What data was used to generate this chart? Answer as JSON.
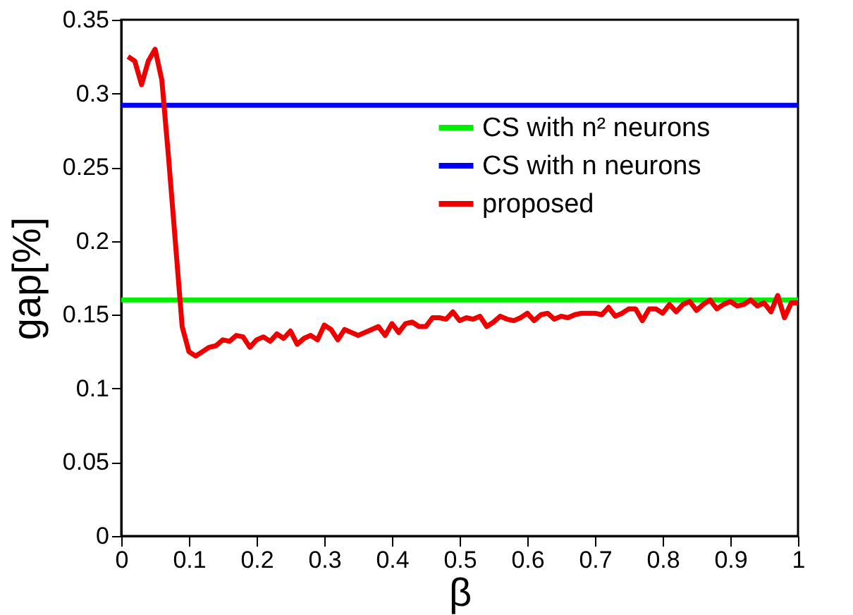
{
  "chart_data": {
    "type": "line",
    "xlabel": "β",
    "ylabel": "gap[%]",
    "xlim": [
      0,
      1
    ],
    "xticks": [
      0,
      0.1,
      0.2,
      0.3,
      0.4,
      0.5,
      0.6,
      0.7,
      0.8,
      0.9,
      1
    ],
    "ylim": [
      0,
      0.35
    ],
    "yticks": [
      0,
      0.05,
      0.1,
      0.15,
      0.2,
      0.25,
      0.3,
      0.35
    ],
    "grid": false,
    "legend": "top right",
    "marker": "none",
    "line_style": "solid",
    "series": [
      {
        "name": "CS with n² neurons",
        "color": "#00ee00",
        "x": [
          0,
          1
        ],
        "values": [
          0.16,
          0.16
        ]
      },
      {
        "name": "CS with n neurons",
        "color": "#0000ee",
        "x": [
          0,
          1
        ],
        "values": [
          0.292,
          0.292
        ]
      },
      {
        "name": "proposed",
        "color": "#ee0000",
        "x": [
          0.01,
          0.02,
          0.03,
          0.04,
          0.05,
          0.06,
          0.07,
          0.08,
          0.09,
          0.1,
          0.11,
          0.12,
          0.13,
          0.14,
          0.15,
          0.16,
          0.17,
          0.18,
          0.19,
          0.2,
          0.21,
          0.22,
          0.23,
          0.24,
          0.25,
          0.26,
          0.27,
          0.28,
          0.29,
          0.3,
          0.31,
          0.32,
          0.33,
          0.34,
          0.35,
          0.36,
          0.37,
          0.38,
          0.39,
          0.4,
          0.41,
          0.42,
          0.43,
          0.44,
          0.45,
          0.46,
          0.47,
          0.48,
          0.49,
          0.5,
          0.51,
          0.52,
          0.53,
          0.54,
          0.55,
          0.56,
          0.57,
          0.58,
          0.59,
          0.6,
          0.61,
          0.62,
          0.63,
          0.64,
          0.65,
          0.66,
          0.67,
          0.68,
          0.69,
          0.7,
          0.71,
          0.72,
          0.73,
          0.74,
          0.75,
          0.76,
          0.77,
          0.78,
          0.79,
          0.8,
          0.81,
          0.82,
          0.83,
          0.84,
          0.85,
          0.86,
          0.87,
          0.88,
          0.89,
          0.9,
          0.91,
          0.92,
          0.93,
          0.94,
          0.95,
          0.96,
          0.97,
          0.98,
          0.99,
          1.0
        ],
        "values": [
          0.325,
          0.322,
          0.306,
          0.322,
          0.33,
          0.309,
          0.256,
          0.199,
          0.142,
          0.125,
          0.122,
          0.125,
          0.128,
          0.129,
          0.133,
          0.132,
          0.136,
          0.135,
          0.128,
          0.133,
          0.135,
          0.132,
          0.137,
          0.134,
          0.139,
          0.13,
          0.134,
          0.136,
          0.133,
          0.143,
          0.14,
          0.133,
          0.14,
          0.138,
          0.136,
          0.138,
          0.14,
          0.142,
          0.136,
          0.144,
          0.138,
          0.144,
          0.145,
          0.142,
          0.142,
          0.148,
          0.148,
          0.147,
          0.152,
          0.146,
          0.148,
          0.147,
          0.149,
          0.142,
          0.145,
          0.149,
          0.147,
          0.146,
          0.148,
          0.151,
          0.146,
          0.15,
          0.151,
          0.147,
          0.149,
          0.148,
          0.15,
          0.151,
          0.151,
          0.151,
          0.15,
          0.155,
          0.149,
          0.151,
          0.154,
          0.154,
          0.146,
          0.154,
          0.154,
          0.151,
          0.157,
          0.152,
          0.157,
          0.159,
          0.153,
          0.157,
          0.16,
          0.154,
          0.157,
          0.159,
          0.156,
          0.157,
          0.16,
          0.156,
          0.158,
          0.152,
          0.163,
          0.148,
          0.158,
          0.158
        ]
      }
    ]
  }
}
